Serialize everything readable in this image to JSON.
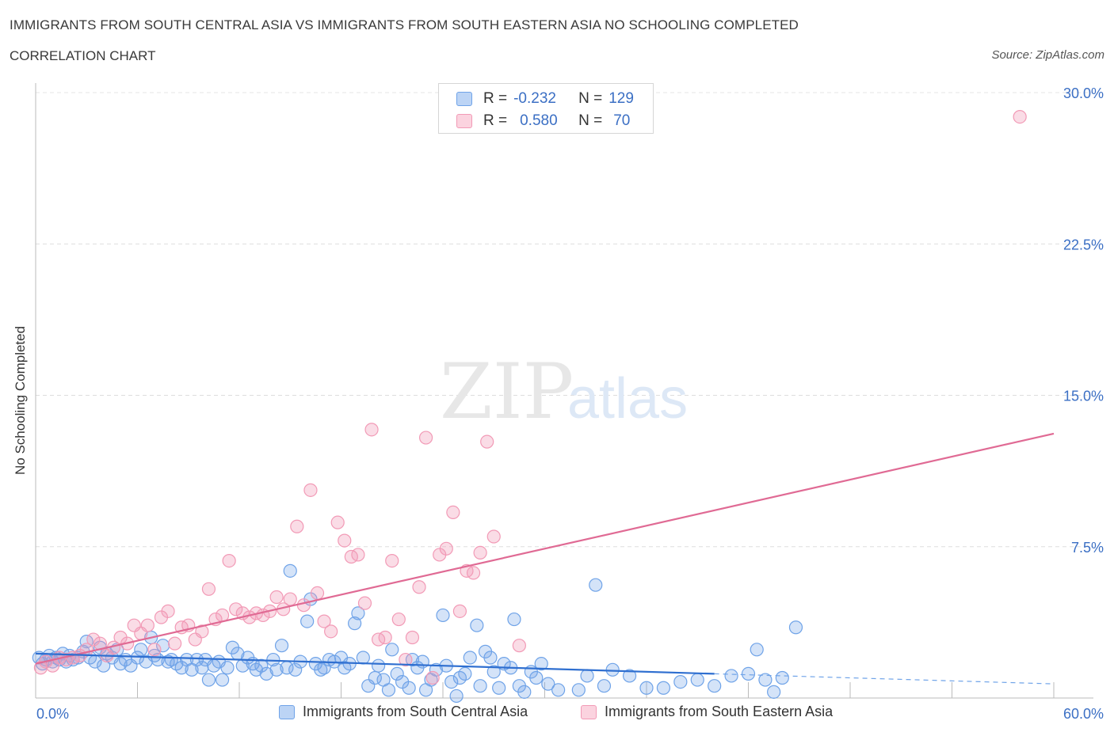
{
  "header": {
    "title": "IMMIGRANTS FROM SOUTH CENTRAL ASIA VS IMMIGRANTS FROM SOUTH EASTERN ASIA NO SCHOOLING COMPLETED",
    "subtitle": "CORRELATION CHART",
    "source": "Source: ZipAtlas.com"
  },
  "watermark": {
    "zip": "ZIP",
    "atlas": "atlas"
  },
  "legend": {
    "rows": [
      {
        "r_label": "R =",
        "r_value": "-0.232",
        "n_label": "N =",
        "n_value": "129",
        "color": "#6fa3e8"
      },
      {
        "r_label": "R =",
        "r_value": "0.580",
        "n_label": "N =",
        "n_value": "70",
        "color": "#f29ab6"
      }
    ]
  },
  "bottom_legend": {
    "series1": "Immigrants from South Central Asia",
    "series2": "Immigrants from South Eastern Asia"
  },
  "chart_data": {
    "type": "scatter",
    "title": "IMMIGRANTS FROM SOUTH CENTRAL ASIA VS IMMIGRANTS FROM SOUTH EASTERN ASIA NO SCHOOLING COMPLETED",
    "ylabel": "No Schooling Completed",
    "xlabel": "",
    "xlim": [
      0,
      60
    ],
    "ylim": [
      0,
      30
    ],
    "x_tick_labels": [
      "0.0%",
      "60.0%"
    ],
    "y_ticks": [
      7.5,
      15.0,
      22.5,
      30.0
    ],
    "y_tick_labels": [
      "7.5%",
      "15.0%",
      "22.5%",
      "30.0%"
    ],
    "grid": true,
    "legend_position": "top-center",
    "series": [
      {
        "name": "Immigrants from South Central Asia",
        "color": "#6fa3e8",
        "trend": {
          "x": [
            0,
            40
          ],
          "y": [
            2.2,
            1.2
          ],
          "dashed_extension": {
            "x": [
              40,
              60
            ],
            "y": [
              1.2,
              0.7
            ]
          }
        },
        "points": [
          [
            0.2,
            2.0
          ],
          [
            0.4,
            1.7
          ],
          [
            0.6,
            1.9
          ],
          [
            0.8,
            2.1
          ],
          [
            1.0,
            1.8
          ],
          [
            1.2,
            2.0
          ],
          [
            1.4,
            1.9
          ],
          [
            1.6,
            2.2
          ],
          [
            1.8,
            1.8
          ],
          [
            2.0,
            2.1
          ],
          [
            2.2,
            1.9
          ],
          [
            2.5,
            2.0
          ],
          [
            2.8,
            2.3
          ],
          [
            3.0,
            2.8
          ],
          [
            3.2,
            2.0
          ],
          [
            3.5,
            1.8
          ],
          [
            3.8,
            2.5
          ],
          [
            4.0,
            1.6
          ],
          [
            4.2,
            2.2
          ],
          [
            4.5,
            2.0
          ],
          [
            4.8,
            2.4
          ],
          [
            5.0,
            1.7
          ],
          [
            5.3,
            1.9
          ],
          [
            5.6,
            1.6
          ],
          [
            6.0,
            2.0
          ],
          [
            6.2,
            2.4
          ],
          [
            6.5,
            1.8
          ],
          [
            6.8,
            3.0
          ],
          [
            7.0,
            2.1
          ],
          [
            7.2,
            1.9
          ],
          [
            7.5,
            2.6
          ],
          [
            7.8,
            1.8
          ],
          [
            8.0,
            1.9
          ],
          [
            8.3,
            1.7
          ],
          [
            8.6,
            1.5
          ],
          [
            8.9,
            1.9
          ],
          [
            9.2,
            1.4
          ],
          [
            9.5,
            1.9
          ],
          [
            9.8,
            1.5
          ],
          [
            10.0,
            1.9
          ],
          [
            10.2,
            0.9
          ],
          [
            10.5,
            1.6
          ],
          [
            10.8,
            1.8
          ],
          [
            11.0,
            0.9
          ],
          [
            11.3,
            1.5
          ],
          [
            11.6,
            2.5
          ],
          [
            11.9,
            2.2
          ],
          [
            12.2,
            1.6
          ],
          [
            12.5,
            2.0
          ],
          [
            12.8,
            1.7
          ],
          [
            13.0,
            1.4
          ],
          [
            13.3,
            1.6
          ],
          [
            13.6,
            1.2
          ],
          [
            14.0,
            1.9
          ],
          [
            14.2,
            1.4
          ],
          [
            14.5,
            2.6
          ],
          [
            14.8,
            1.5
          ],
          [
            15.0,
            6.3
          ],
          [
            15.3,
            1.4
          ],
          [
            15.6,
            1.8
          ],
          [
            16.0,
            3.8
          ],
          [
            16.2,
            4.9
          ],
          [
            16.5,
            1.7
          ],
          [
            16.8,
            1.4
          ],
          [
            17.0,
            1.5
          ],
          [
            17.3,
            1.9
          ],
          [
            17.6,
            1.8
          ],
          [
            18.0,
            2.0
          ],
          [
            18.2,
            1.5
          ],
          [
            18.5,
            1.7
          ],
          [
            18.8,
            3.7
          ],
          [
            19.0,
            4.2
          ],
          [
            19.3,
            2.0
          ],
          [
            19.6,
            0.6
          ],
          [
            20.0,
            1.0
          ],
          [
            20.2,
            1.6
          ],
          [
            20.5,
            0.9
          ],
          [
            20.8,
            0.4
          ],
          [
            21.0,
            2.4
          ],
          [
            21.3,
            1.2
          ],
          [
            21.6,
            0.8
          ],
          [
            22.0,
            0.5
          ],
          [
            22.2,
            1.9
          ],
          [
            22.5,
            1.5
          ],
          [
            22.8,
            1.8
          ],
          [
            23.0,
            0.4
          ],
          [
            23.3,
            0.9
          ],
          [
            23.6,
            1.4
          ],
          [
            24.0,
            4.1
          ],
          [
            24.2,
            1.6
          ],
          [
            24.5,
            0.8
          ],
          [
            24.8,
            0.1
          ],
          [
            25.0,
            1.0
          ],
          [
            25.3,
            1.2
          ],
          [
            25.6,
            2.0
          ],
          [
            26.0,
            3.6
          ],
          [
            26.2,
            0.6
          ],
          [
            26.5,
            2.3
          ],
          [
            26.8,
            2.0
          ],
          [
            27.0,
            1.3
          ],
          [
            27.3,
            0.5
          ],
          [
            27.6,
            1.7
          ],
          [
            28.0,
            1.5
          ],
          [
            28.2,
            3.9
          ],
          [
            28.5,
            0.6
          ],
          [
            28.8,
            0.3
          ],
          [
            29.2,
            1.3
          ],
          [
            29.5,
            1.0
          ],
          [
            29.8,
            1.7
          ],
          [
            30.2,
            0.7
          ],
          [
            30.8,
            0.4
          ],
          [
            32.0,
            0.4
          ],
          [
            32.5,
            1.1
          ],
          [
            33.0,
            5.6
          ],
          [
            33.5,
            0.6
          ],
          [
            34.0,
            1.4
          ],
          [
            35.0,
            1.1
          ],
          [
            36.0,
            0.5
          ],
          [
            37.0,
            0.5
          ],
          [
            38.0,
            0.8
          ],
          [
            39.0,
            0.9
          ],
          [
            40.0,
            0.6
          ],
          [
            41.0,
            1.1
          ],
          [
            42.0,
            1.2
          ],
          [
            42.5,
            2.4
          ],
          [
            43.0,
            0.9
          ],
          [
            43.5,
            0.3
          ],
          [
            44.0,
            1.0
          ],
          [
            44.8,
            3.5
          ]
        ]
      },
      {
        "name": "Immigrants from South Eastern Asia",
        "color": "#f29ab6",
        "trend": {
          "x": [
            0,
            60
          ],
          "y": [
            1.7,
            13.1
          ]
        },
        "points": [
          [
            0.3,
            1.5
          ],
          [
            0.6,
            1.8
          ],
          [
            1.0,
            1.6
          ],
          [
            1.4,
            2.0
          ],
          [
            1.8,
            1.9
          ],
          [
            2.2,
            2.0
          ],
          [
            2.6,
            2.1
          ],
          [
            3.0,
            2.4
          ],
          [
            3.4,
            2.9
          ],
          [
            3.8,
            2.7
          ],
          [
            4.2,
            2.1
          ],
          [
            4.6,
            2.5
          ],
          [
            5.0,
            3.0
          ],
          [
            5.4,
            2.7
          ],
          [
            5.8,
            3.6
          ],
          [
            6.2,
            3.2
          ],
          [
            6.6,
            3.6
          ],
          [
            7.0,
            2.4
          ],
          [
            7.4,
            4.0
          ],
          [
            7.8,
            4.3
          ],
          [
            8.2,
            2.7
          ],
          [
            8.6,
            3.5
          ],
          [
            9.0,
            3.6
          ],
          [
            9.4,
            2.9
          ],
          [
            9.8,
            3.3
          ],
          [
            10.2,
            5.4
          ],
          [
            10.6,
            3.9
          ],
          [
            11.0,
            4.1
          ],
          [
            11.4,
            6.8
          ],
          [
            11.8,
            4.4
          ],
          [
            12.2,
            4.2
          ],
          [
            12.6,
            4.0
          ],
          [
            13.0,
            4.2
          ],
          [
            13.4,
            4.1
          ],
          [
            13.8,
            4.3
          ],
          [
            14.2,
            5.0
          ],
          [
            14.6,
            4.4
          ],
          [
            15.0,
            4.9
          ],
          [
            15.4,
            8.5
          ],
          [
            15.8,
            4.6
          ],
          [
            16.2,
            10.3
          ],
          [
            16.6,
            5.2
          ],
          [
            17.0,
            3.8
          ],
          [
            17.4,
            3.3
          ],
          [
            17.8,
            8.7
          ],
          [
            18.2,
            7.8
          ],
          [
            18.6,
            7.0
          ],
          [
            19.0,
            7.1
          ],
          [
            19.4,
            4.7
          ],
          [
            19.8,
            13.3
          ],
          [
            20.2,
            2.9
          ],
          [
            20.6,
            3.0
          ],
          [
            21.0,
            6.8
          ],
          [
            21.4,
            3.9
          ],
          [
            21.8,
            1.9
          ],
          [
            22.2,
            3.0
          ],
          [
            22.6,
            5.5
          ],
          [
            23.0,
            12.9
          ],
          [
            23.4,
            1.0
          ],
          [
            23.8,
            7.1
          ],
          [
            24.2,
            7.4
          ],
          [
            24.6,
            9.2
          ],
          [
            25.0,
            4.3
          ],
          [
            25.4,
            6.3
          ],
          [
            25.8,
            6.2
          ],
          [
            26.2,
            7.2
          ],
          [
            26.6,
            12.7
          ],
          [
            27.0,
            8.0
          ],
          [
            28.5,
            2.6
          ],
          [
            58.0,
            28.8
          ]
        ]
      }
    ]
  }
}
